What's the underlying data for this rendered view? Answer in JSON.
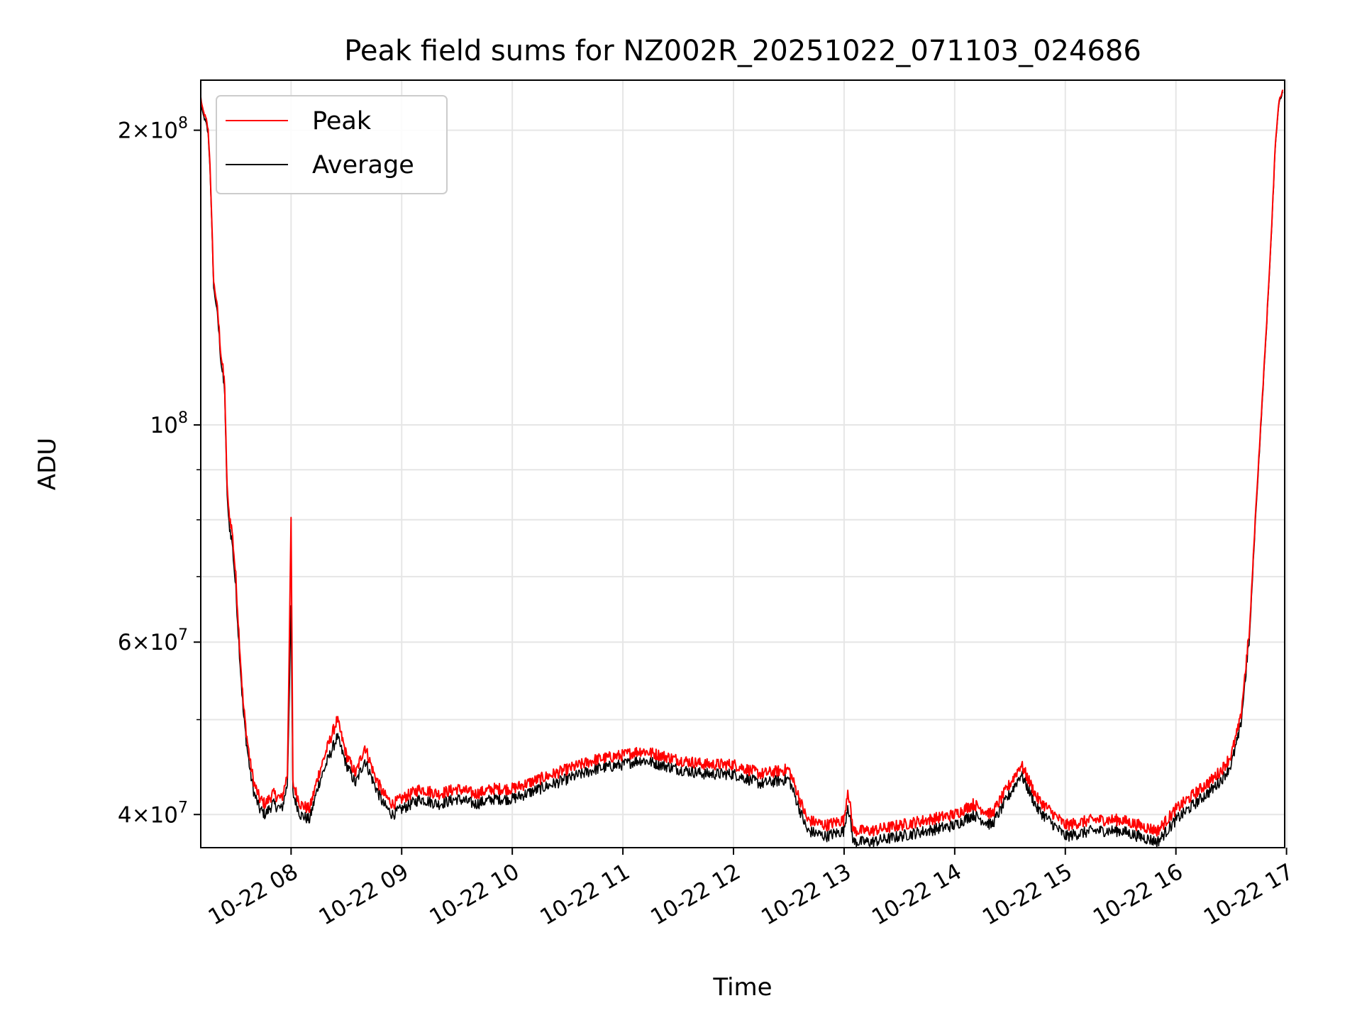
{
  "chart_data": {
    "type": "line",
    "title": "Peak field sums for NZ002R_20251022_071103_024686",
    "xlabel": "Time",
    "ylabel": "ADU",
    "yscale": "log",
    "grid": true,
    "legend_position": "top-left",
    "xlim": [
      "10-22 07:11",
      "10-22 16:59"
    ],
    "ylim": [
      37000000,
      225000000
    ],
    "x_ticks": [
      {
        "label": "10-22 08",
        "value": "10-22 08:00"
      },
      {
        "label": "10-22 09",
        "value": "10-22 09:00"
      },
      {
        "label": "10-22 10",
        "value": "10-22 10:00"
      },
      {
        "label": "10-22 11",
        "value": "10-22 11:00"
      },
      {
        "label": "10-22 12",
        "value": "10-22 12:00"
      },
      {
        "label": "10-22 13",
        "value": "10-22 13:00"
      },
      {
        "label": "10-22 14",
        "value": "10-22 14:00"
      },
      {
        "label": "10-22 15",
        "value": "10-22 15:00"
      },
      {
        "label": "10-22 16",
        "value": "10-22 16:00"
      },
      {
        "label": "10-22 17",
        "value": "10-22 17:00"
      }
    ],
    "y_ticks": [
      {
        "base": "4",
        "exp": "7",
        "value": 40000000
      },
      {
        "base": "6",
        "exp": "7",
        "value": 60000000
      },
      {
        "base": "",
        "exp": "8",
        "value": 100000000
      },
      {
        "base": "2",
        "exp": "8",
        "value": 200000000
      }
    ],
    "y_minor_ticks": [
      50000000,
      70000000,
      80000000,
      90000000
    ],
    "x": [
      "10-22 07:11",
      "10-22 07:12",
      "10-22 07:14",
      "10-22 07:15",
      "10-22 07:16",
      "10-22 07:18",
      "10-22 07:20",
      "10-22 07:22",
      "10-22 07:24",
      "10-22 07:25",
      "10-22 07:26",
      "10-22 07:28",
      "10-22 07:30",
      "10-22 07:32",
      "10-22 07:34",
      "10-22 07:36",
      "10-22 07:38",
      "10-22 07:40",
      "10-22 07:43",
      "10-22 07:46",
      "10-22 07:50",
      "10-22 07:55",
      "10-22 07:58",
      "10-22 08:00",
      "10-22 08:01",
      "10-22 08:05",
      "10-22 08:10",
      "10-22 08:15",
      "10-22 08:20",
      "10-22 08:25",
      "10-22 08:30",
      "10-22 08:35",
      "10-22 08:40",
      "10-22 08:45",
      "10-22 08:50",
      "10-22 08:55",
      "10-22 09:00",
      "10-22 09:10",
      "10-22 09:20",
      "10-22 09:30",
      "10-22 09:40",
      "10-22 09:50",
      "10-22 10:00",
      "10-22 10:15",
      "10-22 10:30",
      "10-22 10:45",
      "10-22 11:00",
      "10-22 11:10",
      "10-22 11:20",
      "10-22 11:30",
      "10-22 11:45",
      "10-22 12:00",
      "10-22 12:15",
      "10-22 12:30",
      "10-22 12:40",
      "10-22 12:50",
      "10-22 13:00",
      "10-22 13:02",
      "10-22 13:05",
      "10-22 13:15",
      "10-22 13:30",
      "10-22 13:45",
      "10-22 14:00",
      "10-22 14:10",
      "10-22 14:20",
      "10-22 14:30",
      "10-22 14:36",
      "10-22 14:45",
      "10-22 15:00",
      "10-22 15:15",
      "10-22 15:30",
      "10-22 15:40",
      "10-22 15:50",
      "10-22 16:00",
      "10-22 16:10",
      "10-22 16:20",
      "10-22 16:25",
      "10-22 16:30",
      "10-22 16:35",
      "10-22 16:40",
      "10-22 16:43",
      "10-22 16:46",
      "10-22 16:49",
      "10-22 16:52",
      "10-22 16:54",
      "10-22 16:56",
      "10-22 16:58"
    ],
    "series": [
      {
        "name": "Peak",
        "color": "#ff0000",
        "values": [
          216000000,
          210000000,
          205000000,
          200000000,
          185000000,
          140000000,
          132000000,
          118000000,
          110000000,
          90000000,
          82000000,
          78000000,
          70000000,
          60000000,
          52000000,
          48000000,
          45000000,
          43000000,
          41500000,
          41000000,
          42000000,
          41500000,
          44000000,
          80000000,
          43000000,
          41000000,
          40500000,
          44000000,
          47000000,
          50000000,
          46000000,
          44000000,
          47000000,
          44000000,
          42000000,
          41000000,
          41500000,
          42500000,
          42000000,
          42500000,
          42000000,
          42500000,
          42500000,
          43500000,
          44500000,
          45500000,
          46000000,
          46500000,
          46000000,
          45500000,
          45000000,
          45000000,
          44000000,
          44500000,
          39500000,
          39000000,
          39500000,
          42500000,
          38500000,
          38500000,
          39000000,
          39500000,
          40000000,
          41000000,
          40000000,
          43000000,
          45000000,
          41500000,
          39000000,
          39500000,
          39500000,
          39000000,
          38500000,
          40500000,
          42000000,
          43500000,
          44500000,
          46000000,
          50000000,
          62000000,
          80000000,
          100000000,
          125000000,
          160000000,
          195000000,
          215000000,
          220000000
        ]
      },
      {
        "name": "Average",
        "color": "#000000",
        "values": [
          214000000,
          208000000,
          203000000,
          198000000,
          183000000,
          138000000,
          130000000,
          116000000,
          108000000,
          88000000,
          80000000,
          76000000,
          68000000,
          58500000,
          51000000,
          47000000,
          44000000,
          42000000,
          40500000,
          40000000,
          41000000,
          40500000,
          43000000,
          65000000,
          42000000,
          40000000,
          39500000,
          43000000,
          45500000,
          48000000,
          45000000,
          43000000,
          45500000,
          43000000,
          41000000,
          40000000,
          40500000,
          41500000,
          41000000,
          41500000,
          41000000,
          41500000,
          41500000,
          42500000,
          43500000,
          44500000,
          45000000,
          45500000,
          45000000,
          44500000,
          44000000,
          44000000,
          43000000,
          43500000,
          38500000,
          38000000,
          38500000,
          41000000,
          37500000,
          37500000,
          38000000,
          38500000,
          39000000,
          40000000,
          39000000,
          42000000,
          44000000,
          40500000,
          38000000,
          38500000,
          38500000,
          38000000,
          37500000,
          39500000,
          41000000,
          42500000,
          43500000,
          45000000,
          49000000,
          61000000,
          79000000,
          99000000,
          124000000,
          159000000,
          194000000,
          214000000,
          219000000
        ]
      }
    ]
  }
}
